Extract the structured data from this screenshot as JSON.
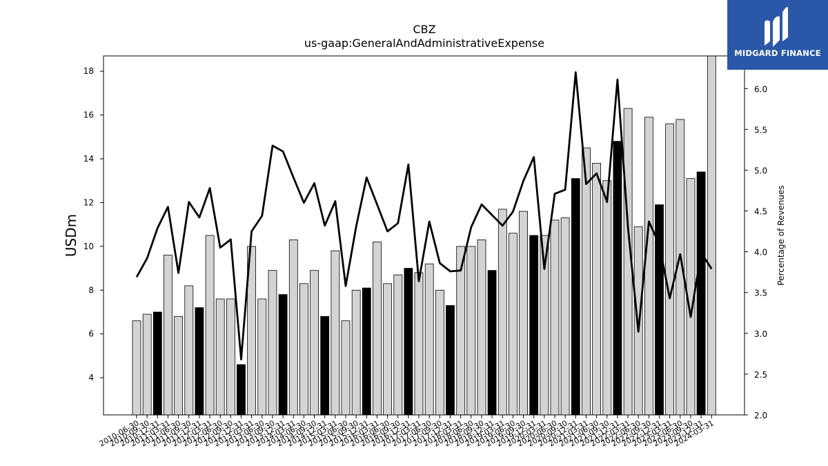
{
  "brand": {
    "name": "MIDGARD FINANCE",
    "bg_color": "#2a57a7"
  },
  "chart_data": {
    "type": "bar",
    "title": "CBZ",
    "subtitle": "us-gaap:GeneralAndAdministrativeExpense",
    "ylabel": "USDm",
    "y2label": "Percentage of Revenues",
    "ylim": [
      2.3,
      18.7
    ],
    "y2lim": [
      2.0,
      6.4
    ],
    "yticks": [
      4,
      6,
      8,
      10,
      12,
      14,
      16,
      18
    ],
    "y2ticks": [
      "2.0",
      "2.5",
      "3.0",
      "3.5",
      "4.0",
      "4.5",
      "5.0",
      "5.5",
      "6.0"
    ],
    "grid": false,
    "legend": "none",
    "bar_colors": {
      "quarter": "#d3d3d3",
      "annual": "#000000",
      "edge": "#000000"
    },
    "line_color": "#000000",
    "categories": [
      "2010-06-30",
      "2010-09-30",
      "2010-12-31",
      "2011-03-31",
      "2011-06-30",
      "2011-09-30",
      "2011-12-31",
      "2012-03-31",
      "2012-06-30",
      "2012-09-30",
      "2012-12-31",
      "2013-03-31",
      "2013-06-30",
      "2013-09-30",
      "2013-12-31",
      "2014-03-31",
      "2014-06-30",
      "2014-09-30",
      "2014-12-31",
      "2015-03-31",
      "2015-06-30",
      "2015-09-30",
      "2015-12-31",
      "2016-03-31",
      "2016-06-30",
      "2016-09-30",
      "2016-12-31",
      "2017-03-31",
      "2017-06-30",
      "2017-09-30",
      "2017-12-31",
      "2018-03-31",
      "2018-06-30",
      "2018-09-30",
      "2018-12-31",
      "2019-03-31",
      "2019-06-30",
      "2019-09-30",
      "2019-12-31",
      "2020-03-31",
      "2020-06-30",
      "2020-09-30",
      "2020-12-31",
      "2021-03-31",
      "2021-06-30",
      "2021-09-30",
      "2021-12-31",
      "2022-03-31",
      "2022-06-30",
      "2022-09-30",
      "2022-12-31",
      "2023-03-31",
      "2023-06-30",
      "2023-09-30",
      "2023-12-31",
      "2024-03-31"
    ],
    "series": [
      {
        "kind": "bar",
        "values": [
          6.6,
          6.9,
          7.0,
          9.6,
          6.8,
          8.2,
          7.2,
          10.5,
          7.6,
          7.6,
          4.6,
          10.0,
          7.6,
          8.9,
          7.8,
          10.3,
          8.3,
          8.9,
          6.8,
          9.8,
          6.6,
          8.0,
          8.1,
          10.2,
          8.3,
          8.7,
          9.0,
          8.8,
          9.2,
          8.0,
          7.3,
          10.0,
          10.0,
          10.3,
          8.9,
          11.7,
          10.6,
          11.6,
          10.5,
          10.5,
          11.2,
          11.3,
          13.1,
          14.5,
          13.8,
          13.0,
          14.8,
          16.3,
          10.9,
          15.9,
          11.9,
          15.6,
          15.8,
          13.1,
          13.4,
          18.7
        ],
        "annual": [
          false,
          false,
          true,
          false,
          false,
          false,
          true,
          false,
          false,
          false,
          true,
          false,
          false,
          false,
          true,
          false,
          false,
          false,
          true,
          false,
          false,
          false,
          true,
          false,
          false,
          false,
          true,
          false,
          false,
          false,
          true,
          false,
          false,
          false,
          true,
          false,
          false,
          false,
          true,
          false,
          false,
          false,
          true,
          false,
          false,
          false,
          true,
          false,
          false,
          false,
          true,
          false,
          false,
          false,
          true,
          false
        ]
      },
      {
        "kind": "line",
        "axis": "right",
        "values": [
          3.69,
          3.92,
          4.29,
          4.55,
          3.74,
          4.61,
          4.42,
          4.78,
          4.05,
          4.15,
          2.68,
          4.25,
          4.44,
          5.3,
          5.23,
          4.91,
          4.6,
          4.84,
          4.32,
          4.62,
          3.58,
          4.31,
          4.91,
          4.58,
          4.25,
          4.35,
          5.07,
          3.64,
          4.37,
          3.86,
          3.76,
          3.77,
          4.3,
          4.58,
          4.45,
          4.32,
          4.49,
          4.87,
          5.16,
          3.79,
          4.71,
          4.76,
          6.2,
          4.83,
          4.96,
          4.61,
          6.11,
          4.3,
          3.02,
          4.37,
          4.09,
          3.43,
          3.97,
          3.2,
          3.99,
          3.79
        ]
      }
    ]
  }
}
